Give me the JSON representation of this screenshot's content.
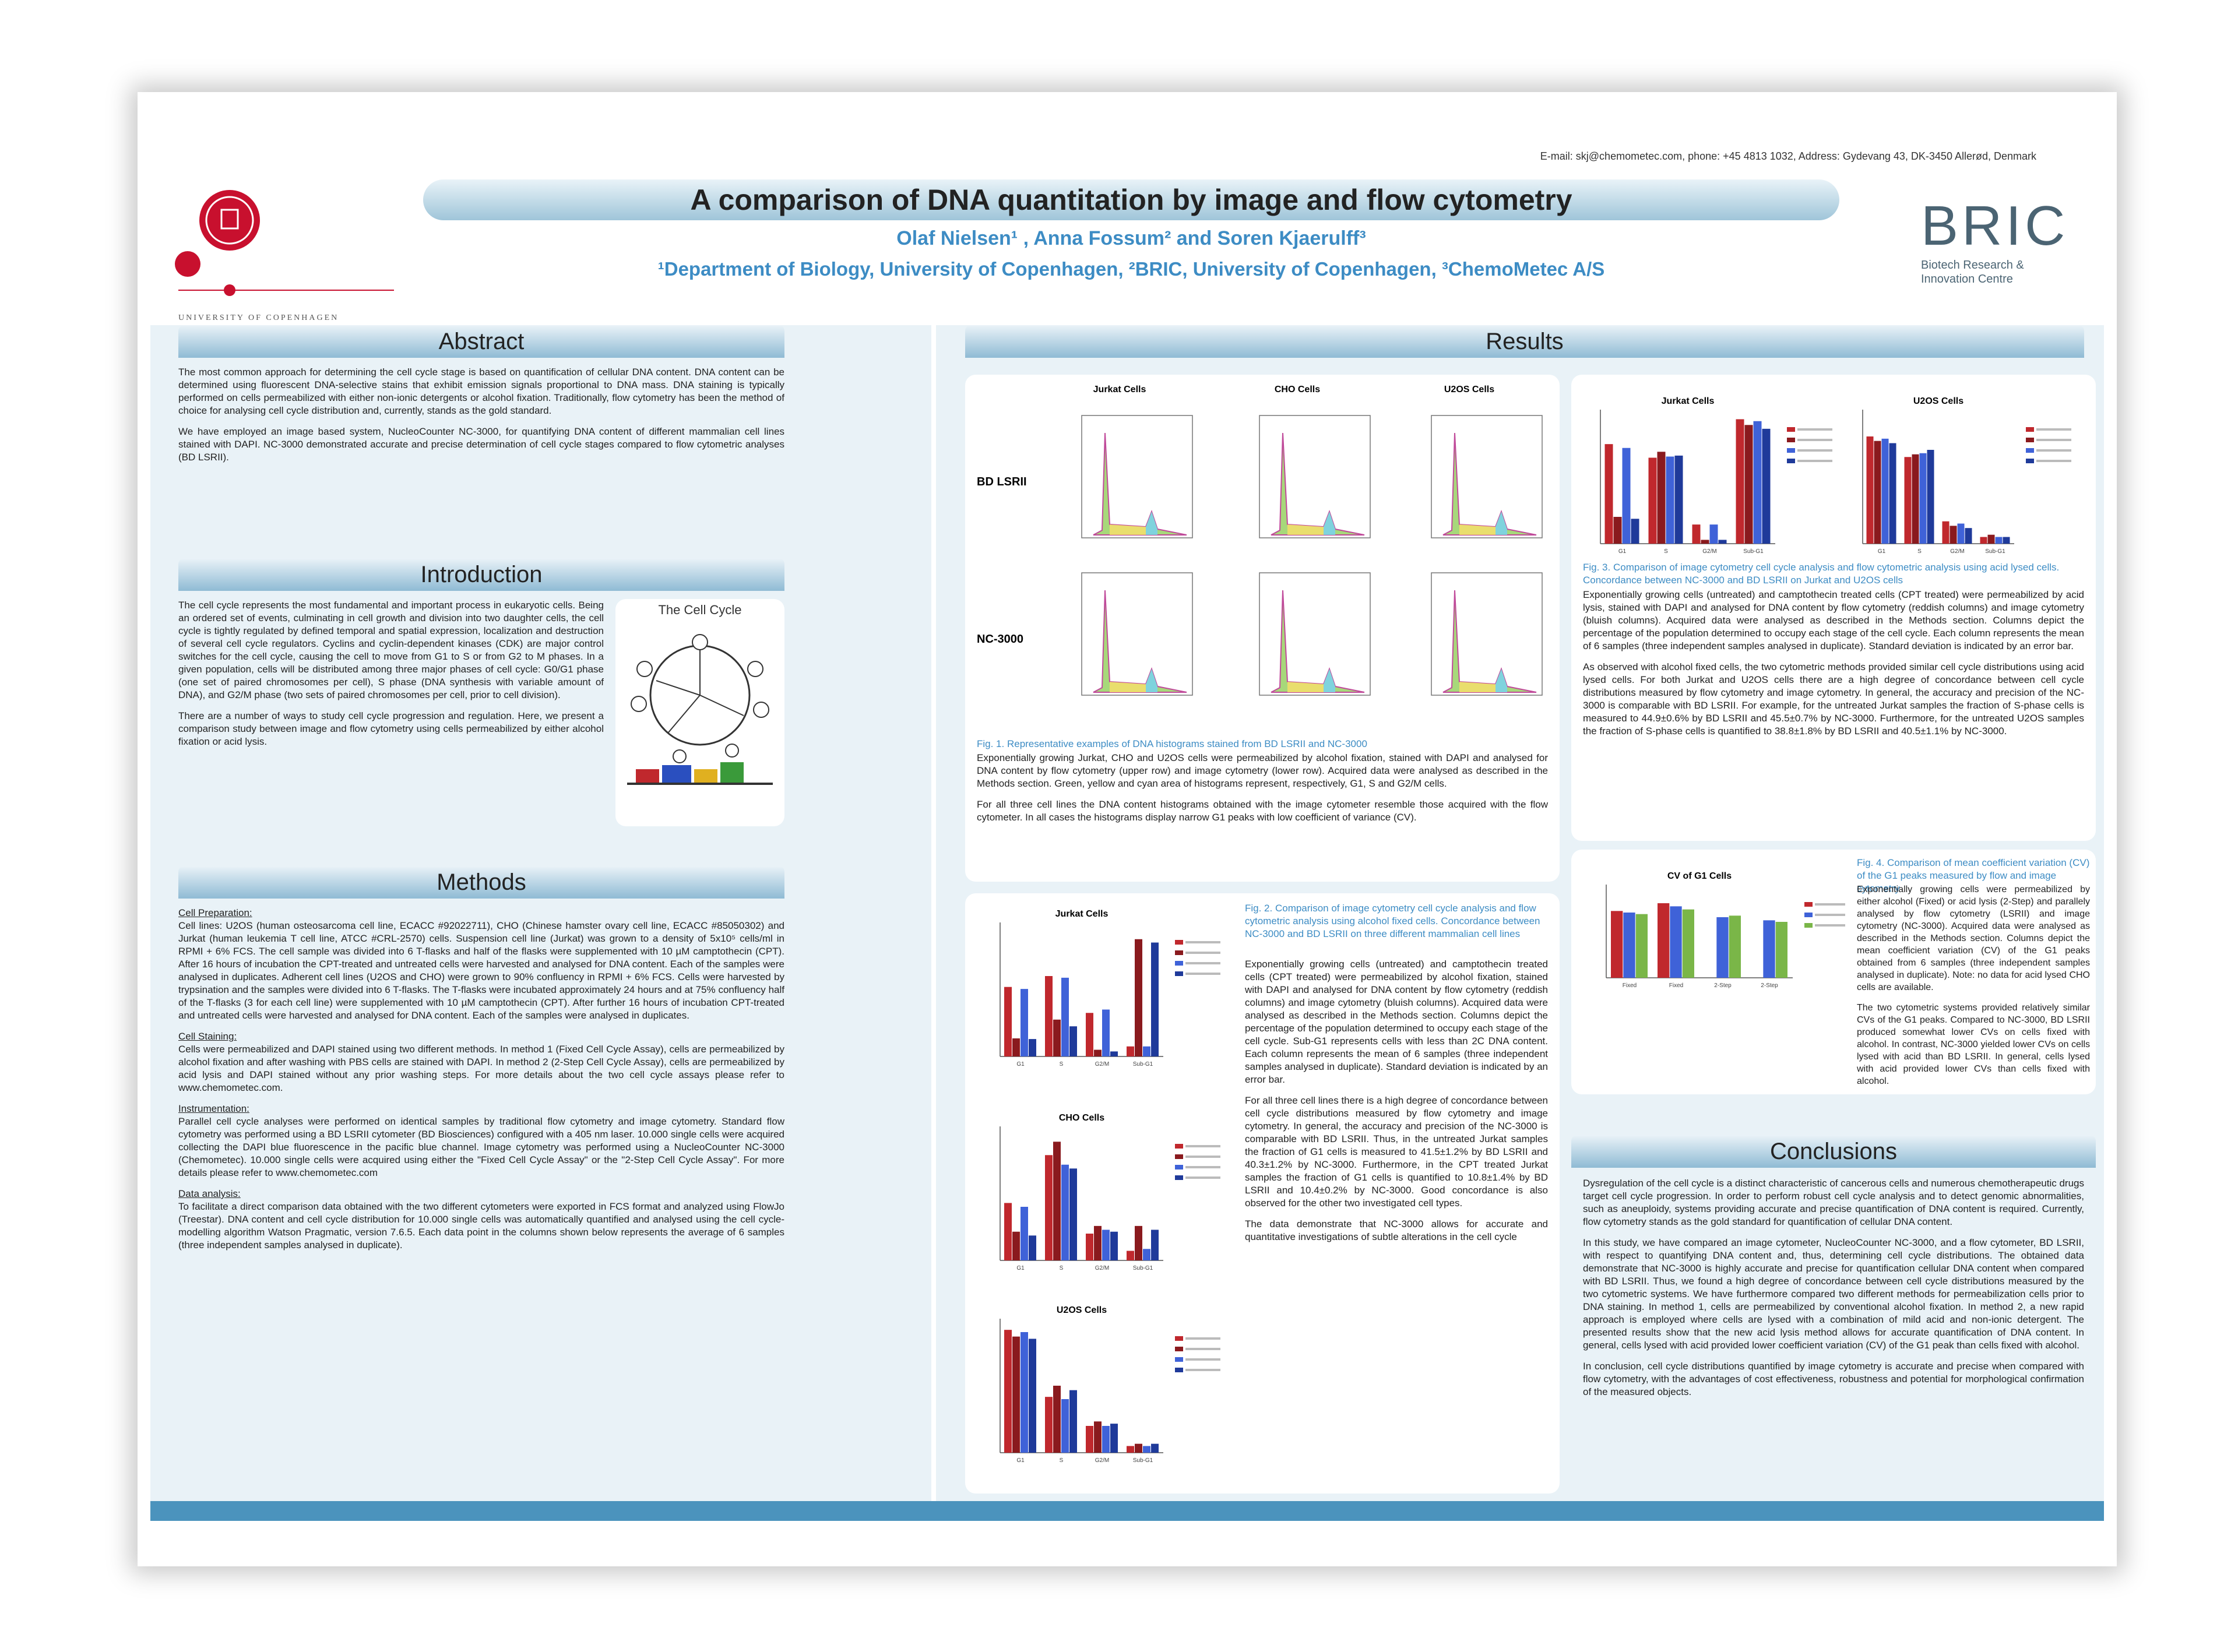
{
  "header": {
    "contact": "E-mail: skj@chemometec.com, phone: +45 4813 1032, Address: Gydevang 43, DK-3450 Allerød, Denmark",
    "title": "A comparison of DNA quantitation by image and flow cytometry",
    "authors": "Olaf Nielsen¹ , Anna Fossum² and Soren Kjaerulff³",
    "affiliations": "¹Department of Biology, University of Copenhagen, ²BRIC, University of Copenhagen, ³ChemoMetec A/S",
    "uc_name": "UNIVERSITY OF COPENHAGEN",
    "bric_title": "BRIC",
    "bric_sub1": "Biotech Research &",
    "bric_sub2": "Innovation Centre"
  },
  "colors": {
    "accent": "#3d8cc4",
    "header_bar": "#4b93bd",
    "red_series": "#c0282d",
    "blue_series": "#2a4fbf",
    "uc_red": "#c8102e"
  },
  "abstract": {
    "title": "Abstract",
    "p1": "The most common approach for determining the cell cycle stage is based on quantification of cellular DNA content. DNA content can be determined using fluorescent DNA-selective stains that exhibit emission signals proportional to DNA mass. DNA staining is typically performed on cells permeabilized with either non-ionic detergents or alcohol fixation. Traditionally, flow cytometry has been the method of choice for analysing cell cycle distribution and, currently, stands as the gold standard.",
    "p2": "We have employed an image based system, NucleoCounter NC-3000, for quantifying DNA content of different mammalian cell lines stained with DAPI. NC-3000 demonstrated accurate and precise determination of cell cycle stages compared to flow cytometric analyses (BD LSRII)."
  },
  "introduction": {
    "title": "Introduction",
    "p1": "The cell cycle represents the most fundamental and important process in eukaryotic cells. Being an ordered set of events, culminating in cell growth and division into two daughter cells, the cell cycle is tightly regulated by defined temporal and spatial expression, localization and destruction of several cell cycle regulators. Cyclins and cyclin-dependent kinases (CDK) are major control switches for the cell cycle, causing the cell to move from G1 to S or from G2 to M phases. In a given population, cells will be distributed among three major phases of cell cycle: G0/G1 phase (one set of paired chromosomes per cell), S phase (DNA synthesis with variable amount of DNA), and G2/M phase (two sets of paired chromosomes per cell, prior to cell division).",
    "p2": "There are a number of ways to study cell cycle progression and regulation. Here, we present a comparison study between image and flow cytometry using cells permeabilized by either alcohol fixation or acid lysis.",
    "figure_title": "The Cell Cycle"
  },
  "methods": {
    "title": "Methods",
    "h1": "Cell Preparation:",
    "p1": "Cell lines: U2OS (human osteosarcoma cell line, ECACC #92022711), CHO (Chinese hamster ovary cell line, ECACC #85050302) and Jurkat (human leukemia T cell line, ATCC #CRL-2570) cells. Suspension cell line (Jurkat) was grown to a density of 5x10⁵ cells/ml in RPMI + 6% FCS. The cell sample was divided into 6 T-flasks and half of the flasks were supplemented with 10 µM camptothecin (CPT). After 16 hours of incubation the CPT-treated and untreated cells were harvested and analysed for DNA content. Each of the samples were analysed in duplicates. Adherent cell lines (U2OS and CHO) were grown to 90% confluency in RPMI + 6% FCS. Cells were harvested by trypsination and the samples were divided into 6 T-flasks. The T-flasks were incubated approximately 24 hours and at 75% confluency half of the T-flasks (3 for each cell line) were supplemented with 10 µM camptothecin (CPT). After further 16 hours of incubation CPT-treated and untreated cells were harvested and analysed for DNA content. Each of the samples were analysed in duplicates.",
    "h2": "Cell Staining:",
    "p2": "Cells were permeabilized and DAPI stained using two different methods. In method 1 (Fixed Cell Cycle Assay), cells are permeabilized by alcohol fixation and after washing with PBS cells are stained with DAPI. In method 2 (2-Step Cell Cycle Assay), cells are permeabilized by acid lysis and DAPI stained without any prior washing steps. For more details about the two cell cycle assays please refer to www.chemometec.com.",
    "h3": "Instrumentation:",
    "p3": "Parallel cell cycle analyses were performed on identical samples by traditional flow cytometry and image cytometry. Standard flow cytometry was performed using a BD LSRII cytometer (BD Biosciences) configured with a 405 nm laser. 10.000 single cells were acquired collecting the DAPI blue fluorescence in the pacific blue channel. Image cytometry was performed using a NucleoCounter NC-3000 (Chemometec). 10.000 single cells were acquired using either the \"Fixed Cell Cycle Assay\" or the \"2-Step Cell Cycle Assay\". For more details please refer to www.chemometec.com",
    "h4": "Data analysis:",
    "p4": "To facilitate a direct comparison data obtained with the two different cytometers were exported in FCS format and analyzed using FlowJo (Treestar). DNA content and cell cycle distribution for 10.000 single cells was automatically quantified and analysed using the cell cycle-modelling algorithm Watson Pragmatic, version 7.6.5. Each data point in the columns shown below represents the average of 6 samples (three independent samples analysed in duplicate)."
  },
  "results": {
    "title": "Results",
    "fig1": {
      "col_titles": [
        "Jurkat Cells",
        "CHO Cells",
        "U2OS Cells"
      ],
      "row_labels": [
        "BD LSRII",
        "NC-3000"
      ],
      "caption_title": "Fig. 1. Representative examples of DNA histograms stained from BD LSRII and NC-3000",
      "caption": "Exponentially growing Jurkat, CHO and U2OS cells were permeabilized by alcohol fixation, stained with DAPI and analysed for DNA content by flow cytometry (upper row) and image cytometry (lower row). Acquired data were analysed as described in the Methods section. Green, yellow and cyan area of histograms represent, respectively, G1, S and G2/M cells.",
      "note": "For all three cell lines the DNA content histograms obtained with the image cytometer resemble those acquired with the flow cytometer. In all cases the histograms display narrow G1 peaks with low coefficient of variance (CV)."
    },
    "fig2": {
      "chart_titles": [
        "Jurkat Cells",
        "CHO Cells",
        "U2OS Cells"
      ],
      "caption_title": "Fig. 2. Comparison of image cytometry cell cycle analysis and flow cytometric analysis using alcohol fixed cells. Concordance between NC-3000 and BD LSRII on three different mammalian cell lines",
      "caption": "Exponentially growing cells (untreated) and camptothecin treated cells (CPT treated) were permeabilized by alcohol fixation, stained with DAPI and analysed for DNA content by flow cytometry (reddish columns) and image cytometry (bluish columns). Acquired data were analysed as described in the Methods section. Columns depict the percentage of the population determined to occupy each stage of the cell cycle. Sub-G1 represents cells with less than 2C DNA content. Each column represents the mean of 6 samples (three independent samples analysed in duplicate). Standard deviation is indicated by an error bar.",
      "p2": "For all three cell lines there is a high degree of concordance between cell cycle distributions measured by flow cytometry and image cytometry. In general, the accuracy and precision of the NC-3000 is comparable with BD LSRII. Thus, in the untreated Jurkat samples the fraction of G1 cells is measured to 41.5±1.2% by BD LSRII and 40.3±1.2% by NC-3000. Furthermore, in the CPT treated Jurkat samples the fraction of G1 cells is quantified to 10.8±1.4% by BD LSRII and 10.4±0.2% by NC-3000. Good concordance is also observed for the other two investigated cell types.",
      "p3": "The data demonstrate that NC-3000 allows for accurate and quantitative investigations of subtle alterations in the cell cycle"
    },
    "fig3": {
      "chart_titles": [
        "Jurkat Cells",
        "U2OS Cells"
      ],
      "caption_title": "Fig. 3. Comparison of image cytometry cell cycle analysis and flow cytometric analysis using acid lysed cells. Concordance between NC-3000 and BD LSRII on Jurkat and U2OS cells",
      "caption": "Exponentially growing cells (untreated) and camptothecin treated cells (CPT treated) were permeabilized by acid lysis, stained with DAPI and analysed for DNA content by flow cytometry (reddish columns) and image cytometry (bluish columns). Acquired data were analysed as described in the Methods section. Columns depict the percentage of the population determined to occupy each stage of the cell cycle. Each column represents the mean of 6 samples (three independent samples analysed in duplicate). Standard deviation is indicated by an error bar.",
      "p2": "As observed with alcohol fixed cells, the two cytometric methods provided similar cell cycle distributions using acid lysed cells. For both Jurkat and U2OS cells there are a high degree of concordance between cell cycle distributions measured by flow cytometry and image cytometry. In general, the accuracy and precision of the NC-3000 is comparable with BD LSRII. For example, for the untreated Jurkat samples the fraction of S-phase cells is measured to 44.9±0.6% by BD LSRII and 45.5±0.7% by NC-3000. Furthermore, for the untreated U2OS samples the fraction of S-phase cells is quantified to 38.8±1.8% by BD LSRII and 40.5±1.1% by NC-3000."
    },
    "fig4": {
      "chart_title": "CV of G1 Cells",
      "caption_title": "Fig. 4. Comparison of mean coefficient variation (CV) of the G1 peaks measured by flow and image cytometry",
      "caption": "Exponentially growing cells were permeabilized by either alcohol (Fixed) or acid lysis (2-Step) and parallely analysed by flow cytometry (LSRII) and image cytometry (NC-3000). Acquired data were analysed as described in the Methods section. Columns depict the mean coefficient variation (CV) of the G1 peaks obtained from 6 samples (three independent samples analysed in duplicate). Note: no data for acid lysed CHO cells are available.",
      "p2": "The two cytometric systems provided relatively similar CVs of the G1 peaks. Compared to NC-3000, BD LSRII produced somewhat lower CVs on cells fixed with alcohol. In contrast, NC-3000 yielded lower CVs on cells lysed with acid than BD LSRII. In general, cells lysed with acid provided lower CVs than cells fixed with alcohol."
    }
  },
  "conclusions": {
    "title": "Conclusions",
    "p1": "Dysregulation of the cell cycle is a distinct characteristic of cancerous cells and numerous chemotherapeutic drugs target cell cycle progression. In order to perform robust cell cycle analysis and to detect genomic abnormalities, such as aneuploidy, systems providing accurate and precise quantification of DNA content is required. Currently, flow cytometry stands as the gold standard for quantification of cellular DNA content.",
    "p2": "In this study, we have compared an image cytometer, NucleoCounter NC-3000, and a flow cytometer, BD LSRII, with respect to quantifying DNA content and, thus, determining cell cycle distributions. The obtained data demonstrate that NC-3000 is highly accurate and precise for quantification cellular DNA content when compared with BD LSRII. Thus, we found a high degree of concordance between cell cycle distributions measured by the two cytometric systems. We have furthermore compared two different methods for permeabilization cells prior to DNA staining. In method 1, cells are permeabilized by conventional alcohol fixation. In method 2, a new rapid approach is employed where cells are lysed with a combination of mild acid and non-ionic detergent. The presented results show that the new acid lysis method allows for accurate quantification of DNA content. In general, cells lysed with acid provided lower coefficient variation (CV) of the G1 peak than cells fixed with alcohol.",
    "p3": "In conclusion, cell cycle distributions quantified by image cytometry is accurate and precise when compared with flow cytometry, with the advantages of cost effectiveness, robustness and potential for morphological confirmation of the measured objects."
  },
  "chart_data": [
    {
      "type": "bar",
      "chart": "Fig2 Jurkat Cells",
      "categories": [
        "G1",
        "S",
        "G2/M",
        "Sub-G1"
      ],
      "series": [
        {
          "values": [
            41.5,
            48,
            26,
            6
          ]
        },
        {
          "values": [
            10.8,
            22,
            4,
            70
          ]
        },
        {
          "values": [
            40.3,
            47,
            28,
            6
          ]
        },
        {
          "values": [
            10.4,
            18,
            3,
            68
          ]
        }
      ],
      "ylim": [
        0,
        80
      ]
    },
    {
      "type": "bar",
      "chart": "Fig2 CHO Cells",
      "categories": [
        "G1",
        "S",
        "G2/M",
        "Sub-G1"
      ],
      "series": [
        {
          "values": [
            30,
            55,
            14,
            5
          ]
        },
        {
          "values": [
            15,
            62,
            18,
            18
          ]
        },
        {
          "values": [
            28,
            50,
            16,
            6
          ]
        },
        {
          "values": [
            13,
            48,
            15,
            16
          ]
        }
      ],
      "ylim": [
        0,
        70
      ]
    },
    {
      "type": "bar",
      "chart": "Fig2 U2OS Cells",
      "categories": [
        "G1",
        "S",
        "G2/M",
        "Sub-G1"
      ],
      "series": [
        {
          "values": [
            55,
            25,
            12,
            3
          ]
        },
        {
          "values": [
            52,
            30,
            14,
            4
          ]
        },
        {
          "values": [
            54,
            24,
            12,
            3
          ]
        },
        {
          "values": [
            51,
            28,
            13,
            4
          ]
        }
      ],
      "ylim": [
        0,
        60
      ]
    },
    {
      "type": "bar",
      "chart": "Fig3 Jurkat Cells",
      "categories": [
        "G1",
        "S",
        "G2/M",
        "Sub-G1"
      ],
      "series": [
        {
          "values": [
            52,
            44.9,
            10,
            65
          ]
        },
        {
          "values": [
            14,
            48,
            2,
            62
          ]
        },
        {
          "values": [
            50,
            45.5,
            10,
            64
          ]
        },
        {
          "values": [
            13,
            46,
            2,
            60
          ]
        }
      ],
      "ylim": [
        0,
        70
      ]
    },
    {
      "type": "bar",
      "chart": "Fig3 U2OS Cells",
      "categories": [
        "G1",
        "S",
        "G2/M",
        "Sub-G1"
      ],
      "series": [
        {
          "values": [
            48,
            38.8,
            10,
            3
          ]
        },
        {
          "values": [
            46,
            40,
            8,
            4
          ]
        },
        {
          "values": [
            47,
            40.5,
            9,
            3
          ]
        },
        {
          "values": [
            45,
            42,
            7,
            3
          ]
        }
      ],
      "ylim": [
        0,
        60
      ]
    },
    {
      "type": "bar",
      "chart": "Fig4 CV of G1 Cells",
      "title": "CV of G1 Cells",
      "categories": [
        "Fixed",
        "Fixed",
        "2-Step",
        "2-Step"
      ],
      "series": [
        {
          "values": [
            4.3,
            4.8,
            0,
            0
          ]
        },
        {
          "values": [
            4.2,
            4.6,
            3.9,
            3.7
          ]
        },
        {
          "values": [
            4.1,
            4.4,
            4.0,
            3.6
          ]
        }
      ],
      "ylim": [
        0,
        6
      ]
    }
  ]
}
